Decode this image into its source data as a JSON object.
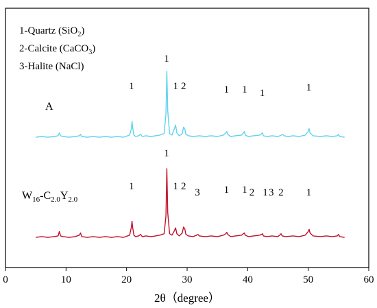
{
  "chart_data": {
    "type": "line",
    "xlabel": "2θ（degree）",
    "ylabel": "",
    "xlim": [
      0,
      60
    ],
    "xticks": [
      0,
      10,
      20,
      30,
      40,
      50,
      60
    ],
    "grid": false,
    "legend": [
      {
        "text": "1-Quartz (SiO",
        "sub": "2",
        "tail": ")"
      },
      {
        "text": "2-Calcite (CaCO",
        "sub": "3",
        "tail": ")"
      },
      {
        "text": "3-Halite (NaCl)",
        "sub": "",
        "tail": ""
      }
    ],
    "series": [
      {
        "label_parts": [
          "A"
        ],
        "color": "#5fd3ee",
        "baseline": 0.08,
        "x": [
          5,
          6,
          7,
          8,
          8.7,
          8.9,
          9.1,
          9.5,
          10.5,
          11.5,
          12.2,
          12.4,
          12.6,
          13.5,
          14.5,
          15.5,
          16.5,
          17.5,
          18.5,
          19.5,
          20.5,
          20.8,
          20.9,
          21.0,
          21.2,
          21.5,
          22.0,
          22.3,
          22.6,
          23.2,
          24.0,
          24.8,
          25.5,
          26.2,
          26.5,
          26.65,
          26.8,
          27.1,
          27.5,
          27.9,
          28.1,
          28.3,
          28.7,
          29.2,
          29.4,
          29.6,
          29.8,
          30.2,
          31.0,
          32.0,
          33.0,
          34.0,
          35.0,
          36.0,
          36.4,
          36.55,
          36.7,
          37.2,
          38.0,
          39.0,
          39.3,
          39.45,
          39.6,
          40.1,
          41.0,
          42.0,
          42.3,
          42.45,
          42.6,
          43.2,
          44.0,
          45.0,
          45.6,
          45.8,
          46.0,
          46.7,
          47.5,
          48.5,
          49.5,
          50.0,
          50.15,
          50.3,
          50.8,
          52.0,
          53.0,
          54.0,
          54.8,
          55.0,
          55.2,
          56.0
        ],
        "y": [
          0.08,
          0.09,
          0.08,
          0.09,
          0.1,
          0.14,
          0.1,
          0.09,
          0.08,
          0.09,
          0.1,
          0.12,
          0.09,
          0.08,
          0.09,
          0.08,
          0.09,
          0.08,
          0.09,
          0.08,
          0.11,
          0.2,
          0.3,
          0.22,
          0.11,
          0.09,
          0.1,
          0.12,
          0.09,
          0.1,
          0.09,
          0.1,
          0.11,
          0.13,
          0.4,
          1.0,
          0.45,
          0.13,
          0.11,
          0.2,
          0.25,
          0.14,
          0.1,
          0.13,
          0.22,
          0.2,
          0.12,
          0.1,
          0.09,
          0.1,
          0.09,
          0.1,
          0.09,
          0.11,
          0.14,
          0.16,
          0.12,
          0.09,
          0.1,
          0.11,
          0.14,
          0.16,
          0.11,
          0.09,
          0.1,
          0.11,
          0.13,
          0.14,
          0.1,
          0.09,
          0.1,
          0.09,
          0.11,
          0.12,
          0.1,
          0.09,
          0.1,
          0.09,
          0.11,
          0.16,
          0.2,
          0.14,
          0.1,
          0.09,
          0.1,
          0.09,
          0.1,
          0.12,
          0.09,
          0.08
        ]
      },
      {
        "label_parts": [
          "W",
          "16",
          "-C",
          "2.0",
          "Y",
          "2.0"
        ],
        "color": "#c0102a",
        "baseline": 0.06,
        "x": [
          5,
          6,
          7,
          8,
          8.7,
          8.9,
          9.1,
          9.5,
          10.5,
          11.5,
          12.2,
          12.4,
          12.6,
          13.5,
          14.5,
          15.5,
          16.5,
          17.5,
          18.5,
          19.5,
          20.5,
          20.8,
          20.9,
          21.0,
          21.2,
          21.5,
          22.0,
          22.3,
          22.6,
          23.2,
          24.0,
          24.8,
          25.5,
          26.2,
          26.5,
          26.65,
          26.8,
          27.1,
          27.5,
          27.9,
          28.1,
          28.3,
          28.7,
          29.2,
          29.4,
          29.6,
          29.8,
          30.2,
          31.0,
          31.6,
          31.8,
          32.0,
          33.0,
          34.0,
          35.0,
          36.0,
          36.4,
          36.55,
          36.7,
          37.2,
          38.0,
          39.0,
          39.3,
          39.45,
          39.6,
          40.1,
          41.0,
          42.0,
          42.3,
          42.45,
          42.6,
          43.2,
          44.0,
          45.0,
          45.3,
          45.5,
          45.7,
          46.3,
          47.5,
          48.5,
          49.5,
          50.0,
          50.15,
          50.3,
          50.8,
          52.0,
          53.0,
          54.0,
          54.8,
          55.0,
          55.2,
          56.0
        ],
        "y": [
          0.06,
          0.07,
          0.06,
          0.07,
          0.08,
          0.14,
          0.08,
          0.07,
          0.06,
          0.07,
          0.09,
          0.12,
          0.07,
          0.06,
          0.07,
          0.06,
          0.07,
          0.06,
          0.07,
          0.06,
          0.09,
          0.2,
          0.28,
          0.2,
          0.09,
          0.07,
          0.08,
          0.1,
          0.07,
          0.08,
          0.07,
          0.08,
          0.09,
          0.11,
          0.35,
          1.0,
          0.4,
          0.11,
          0.09,
          0.15,
          0.19,
          0.11,
          0.08,
          0.12,
          0.2,
          0.18,
          0.1,
          0.08,
          0.07,
          0.09,
          0.1,
          0.08,
          0.07,
          0.08,
          0.07,
          0.09,
          0.11,
          0.13,
          0.1,
          0.07,
          0.08,
          0.09,
          0.11,
          0.12,
          0.09,
          0.07,
          0.08,
          0.09,
          0.1,
          0.11,
          0.08,
          0.07,
          0.08,
          0.07,
          0.09,
          0.11,
          0.08,
          0.07,
          0.08,
          0.07,
          0.09,
          0.14,
          0.17,
          0.12,
          0.08,
          0.07,
          0.08,
          0.07,
          0.08,
          0.1,
          0.07,
          0.06
        ]
      }
    ],
    "peak_labels": [
      [
        {
          "x": 20.8,
          "text": "1"
        },
        {
          "x": 26.6,
          "text": "1"
        },
        {
          "x": 28.1,
          "text": "1"
        },
        {
          "x": 29.4,
          "text": "2"
        },
        {
          "x": 36.5,
          "text": "1"
        },
        {
          "x": 39.5,
          "text": "1"
        },
        {
          "x": 42.4,
          "text": "1"
        },
        {
          "x": 50.1,
          "text": "1"
        }
      ],
      [
        {
          "x": 20.8,
          "text": "1"
        },
        {
          "x": 26.6,
          "text": "1"
        },
        {
          "x": 28.1,
          "text": "1"
        },
        {
          "x": 29.4,
          "text": "2"
        },
        {
          "x": 31.7,
          "text": "3"
        },
        {
          "x": 36.5,
          "text": "1"
        },
        {
          "x": 39.5,
          "text": "1"
        },
        {
          "x": 40.7,
          "text": "2"
        },
        {
          "x": 42.9,
          "text": "1"
        },
        {
          "x": 43.9,
          "text": "3"
        },
        {
          "x": 45.5,
          "text": "2"
        },
        {
          "x": 50.1,
          "text": "1"
        }
      ]
    ]
  }
}
